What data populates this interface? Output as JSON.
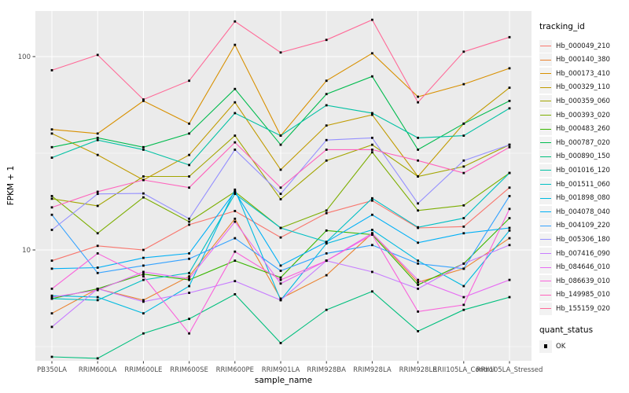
{
  "figure": {
    "background": "#FFFFFF",
    "panel_background": "#EBEBEB",
    "grid_color": "#FFFFFF",
    "tick_label_color": "#4D4D4D",
    "point_color": "#000000"
  },
  "chart_data": {
    "type": "line",
    "title": "",
    "xlabel": "sample_name",
    "ylabel": "FPKM + 1",
    "y_scale": "log10",
    "ylim": [
      2.6,
      172
    ],
    "y_tick_values": [
      100,
      10
    ],
    "y_tick_labels": [
      "100",
      "10"
    ],
    "y_minor_values": [
      31.62,
      3.162
    ],
    "grid": true,
    "legend_position": "right",
    "legend_title": "tracking_id",
    "legend2_title": "quant_status",
    "legend2_value": "OK",
    "categories": [
      "PB350LA",
      "RRIM600LA",
      "RRIM600LE",
      "RRIM600SE",
      "RRIM600PE",
      "RRIM901LA",
      "RRIM928BA",
      "RRIM928LA",
      "RRIM928LE",
      "RRII105LA_Control",
      "RRII105LA_Stressed"
    ],
    "series": [
      {
        "name": "Hb_000049_210",
        "color": "#F8766D",
        "values": [
          8.8,
          10.5,
          10,
          13.5,
          15.9,
          11.6,
          15.5,
          18,
          13,
          13.2,
          21
        ]
      },
      {
        "name": "Hb_000140_380",
        "color": "#EA8331",
        "values": [
          4.7,
          6.3,
          5.5,
          7.3,
          14.5,
          5.6,
          7.4,
          12.2,
          6.8,
          8,
          11.5
        ]
      },
      {
        "name": "Hb_000173_410",
        "color": "#D89000",
        "values": [
          42,
          40,
          59,
          45,
          115,
          39,
          75,
          104,
          62,
          72,
          87
        ]
      },
      {
        "name": "Hb_000329_110",
        "color": "#C09B00",
        "values": [
          40,
          31,
          23,
          31,
          58,
          26,
          44,
          50,
          24,
          45,
          69
        ]
      },
      {
        "name": "Hb_000359_060",
        "color": "#A3A500",
        "values": [
          18.4,
          16.9,
          24,
          24,
          39,
          18.3,
          29,
          35,
          24,
          27,
          35
        ]
      },
      {
        "name": "Hb_000393_020",
        "color": "#7CAE00",
        "values": [
          19,
          12.2,
          18.7,
          14,
          20,
          13,
          16,
          32,
          16,
          17,
          25
        ]
      },
      {
        "name": "Hb_000483_260",
        "color": "#39B600",
        "values": [
          5.6,
          6.3,
          7.5,
          7,
          8.8,
          7.2,
          12.6,
          12,
          6.6,
          8.5,
          14.6
        ]
      },
      {
        "name": "Hb_000787_020",
        "color": "#00BB4E",
        "values": [
          34,
          38,
          34,
          40,
          68,
          35,
          64,
          79,
          33,
          45,
          59
        ]
      },
      {
        "name": "Hb_000890_150",
        "color": "#00BF7D",
        "values": [
          2.8,
          2.75,
          3.7,
          4.4,
          5.9,
          3.3,
          4.9,
          6.1,
          3.8,
          4.9,
          5.7
        ]
      },
      {
        "name": "Hb_001016_120",
        "color": "#00C1A3",
        "values": [
          30,
          37,
          33,
          27.5,
          51,
          39,
          56,
          51,
          38,
          39,
          54
        ]
      },
      {
        "name": "Hb_001511_060",
        "color": "#00BFC4",
        "values": [
          5.6,
          5.5,
          7,
          7.6,
          19.5,
          13,
          11,
          18.5,
          13.1,
          14.6,
          25
        ]
      },
      {
        "name": "Hb_001898_080",
        "color": "#00BAE0",
        "values": [
          5.8,
          5.7,
          4.7,
          6.5,
          20.5,
          5.5,
          10.8,
          12.7,
          8.8,
          6.5,
          12.6
        ]
      },
      {
        "name": "Hb_004078_040",
        "color": "#00B0F6",
        "values": [
          8,
          8.1,
          9.1,
          9.6,
          20,
          8.3,
          11,
          15.2,
          10.9,
          12.2,
          13
        ]
      },
      {
        "name": "Hb_004109_220",
        "color": "#35A2FF",
        "values": [
          15.2,
          7.6,
          8.3,
          9,
          11.5,
          7.8,
          9.6,
          10.6,
          8.5,
          8,
          19
        ]
      },
      {
        "name": "Hb_005306_180",
        "color": "#9590FF",
        "values": [
          12.7,
          19.5,
          19.6,
          14.5,
          33,
          19.5,
          37,
          38,
          17.4,
          29,
          35
        ]
      },
      {
        "name": "Hb_007416_090",
        "color": "#C77CFF",
        "values": [
          4,
          6.3,
          5.4,
          6,
          6.9,
          5.5,
          8.8,
          7.7,
          6.3,
          8.5,
          10.6
        ]
      },
      {
        "name": "Hb_084646_010",
        "color": "#E76BF3",
        "values": [
          5.7,
          6.2,
          7.7,
          7.1,
          14,
          6.7,
          8.8,
          12.2,
          7,
          5.7,
          7
        ]
      },
      {
        "name": "Hb_086639_010",
        "color": "#FA62DB",
        "values": [
          6.3,
          9.6,
          7.3,
          3.7,
          9.8,
          7,
          8.8,
          12,
          4.8,
          5.2,
          16.3
        ]
      },
      {
        "name": "Hb_149985_010",
        "color": "#FF62BC",
        "values": [
          16.6,
          20,
          23,
          21,
          36,
          21,
          33,
          33,
          29,
          25,
          34
        ]
      },
      {
        "name": "Hb_155159_020",
        "color": "#FF6A98",
        "values": [
          85,
          102,
          60,
          75,
          152,
          105,
          122,
          155,
          58,
          106,
          126
        ]
      }
    ]
  }
}
